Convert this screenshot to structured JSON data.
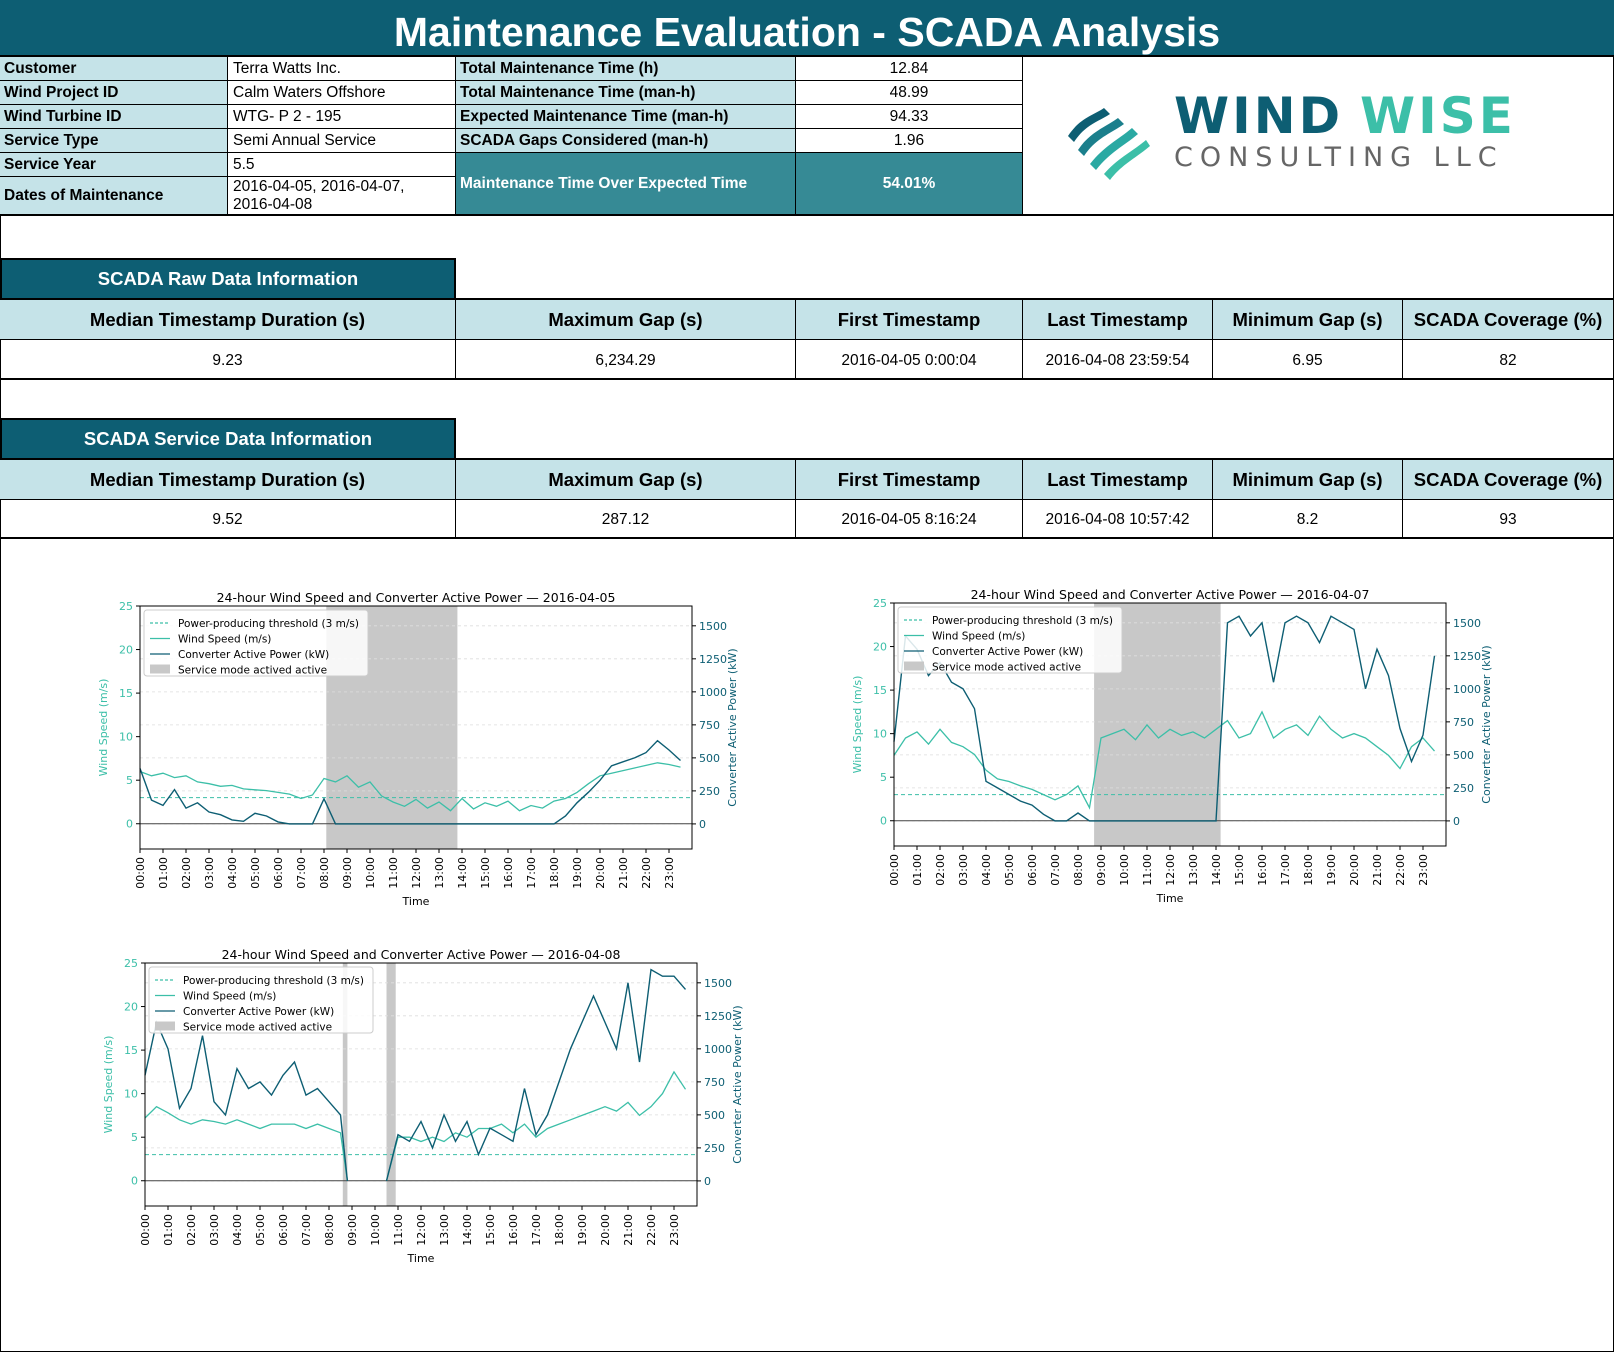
{
  "report": {
    "title": "Maintenance Evaluation - SCADA Analysis"
  },
  "colors": {
    "header_bg": "#0d5e73",
    "light_header": "#c5e3e8",
    "highlight": "#368a95",
    "wind": "#3cbfa8",
    "power": "#0d5e73",
    "service": "#c8c8c8"
  },
  "info": {
    "customer_label": "Customer",
    "customer": "Terra Watts Inc.",
    "project_label": "Wind Project ID",
    "project": "Calm Waters Offshore",
    "turbine_label": "Wind Turbine ID",
    "turbine": "WTG- P 2 - 195",
    "service_type_label": "Service Type",
    "service_type": "Semi Annual Service",
    "service_year_label": "Service Year",
    "service_year": "5.5",
    "dates_label": "Dates of Maintenance",
    "dates": "2016-04-05, 2016-04-07,",
    "dates_2": "2016-04-08"
  },
  "metrics": {
    "total_h_label": "Total Maintenance Time (h)",
    "total_h": "12.84",
    "total_manh_label": "Total Maintenance Time (man-h)",
    "total_manh": "48.99",
    "expected_label": "Expected Maintenance Time (man-h)",
    "expected": "94.33",
    "gaps_label": "SCADA Gaps Considered (man-h)",
    "gaps": "1.96",
    "over_label": "Maintenance Time Over Expected Time",
    "over": "54.01%"
  },
  "logo": {
    "word1": "WIND",
    "word2": "WISE",
    "sub": "CONSULTING LLC"
  },
  "raw": {
    "heading": "SCADA Raw Data Information",
    "headers": [
      "Median Timestamp Duration (s)",
      "Maximum Gap (s)",
      "First Timestamp",
      "Last Timestamp",
      "Minimum Gap (s)",
      "SCADA Coverage (%)"
    ],
    "values": [
      "9.23",
      "6,234.29",
      "2016-04-05 0:00:04",
      "2016-04-08 23:59:54",
      "6.95",
      "82"
    ]
  },
  "service": {
    "heading": "SCADA Service Data Information",
    "headers": [
      "Median Timestamp Duration (s)",
      "Maximum Gap (s)",
      "First Timestamp",
      "Last Timestamp",
      "Minimum Gap (s)",
      "SCADA Coverage (%)"
    ],
    "values": [
      "9.52",
      "287.12",
      "2016-04-05 8:16:24",
      "2016-04-08 10:57:42",
      "8.2",
      "93"
    ]
  },
  "chart_data": [
    {
      "type": "line",
      "title": "24-hour Wind Speed and Converter Active Power — 2016-04-05",
      "xlabel": "Time",
      "ylabel": "Wind Speed (m/s)",
      "y2label": "Converter Active Power (kW)",
      "ylim": [
        -2.9,
        25
      ],
      "y2lim": [
        -190,
        1650
      ],
      "yticks": [
        0,
        5,
        10,
        15,
        20,
        25
      ],
      "y2ticks": [
        0,
        250,
        500,
        750,
        1000,
        1250,
        1500
      ],
      "xticks": [
        "00:00",
        "01:00",
        "02:00",
        "03:00",
        "04:00",
        "05:00",
        "06:00",
        "07:00",
        "08:00",
        "09:00",
        "10:00",
        "11:00",
        "12:00",
        "13:00",
        "14:00",
        "15:00",
        "16:00",
        "17:00",
        "18:00",
        "19:00",
        "20:00",
        "21:00",
        "22:00",
        "23:00"
      ],
      "threshold": 3,
      "legend": [
        "Power-producing threshold (3 m/s)",
        "Wind Speed (m/s)",
        "Converter Active Power (kW)",
        "Service mode actived active"
      ],
      "legend_loc": "upper-left",
      "service_windows": [
        [
          8.1,
          13.8
        ]
      ],
      "gaps": [],
      "hours": [
        0,
        0.5,
        1,
        1.5,
        2,
        2.5,
        3,
        3.5,
        4,
        4.5,
        5,
        5.5,
        6,
        6.5,
        7,
        7.5,
        8,
        8.5,
        9,
        9.5,
        10,
        10.5,
        11,
        11.5,
        12,
        12.5,
        13,
        13.5,
        14,
        14.5,
        15,
        15.5,
        16,
        16.5,
        17,
        17.5,
        18,
        18.5,
        19,
        19.5,
        20,
        20.5,
        21,
        21.5,
        22,
        22.5,
        23,
        23.5
      ],
      "wind": [
        6.0,
        5.5,
        5.8,
        5.3,
        5.5,
        4.8,
        4.6,
        4.3,
        4.4,
        4.0,
        3.9,
        3.8,
        3.6,
        3.4,
        2.9,
        3.3,
        5.2,
        4.8,
        5.5,
        4.2,
        4.8,
        3.2,
        2.5,
        2.0,
        2.8,
        1.8,
        2.5,
        1.5,
        2.9,
        1.7,
        2.4,
        2.0,
        2.6,
        1.5,
        2.1,
        1.8,
        2.6,
        2.9,
        3.6,
        4.6,
        5.5,
        5.8,
        6.1,
        6.4,
        6.7,
        7.0,
        6.8,
        6.5
      ],
      "power": [
        420,
        180,
        140,
        260,
        120,
        160,
        90,
        70,
        30,
        20,
        80,
        60,
        15,
        0,
        0,
        0,
        190,
        0,
        0,
        0,
        0,
        0,
        0,
        0,
        0,
        0,
        0,
        0,
        0,
        0,
        0,
        0,
        0,
        0,
        0,
        0,
        0,
        60,
        160,
        240,
        330,
        440,
        470,
        500,
        540,
        630,
        560,
        480
      ]
    },
    {
      "type": "line",
      "title": "24-hour Wind Speed and Converter Active Power — 2016-04-07",
      "xlabel": "Time",
      "ylabel": "Wind Speed (m/s)",
      "y2label": "Converter Active Power (kW)",
      "ylim": [
        -2.9,
        25
      ],
      "y2lim": [
        -190,
        1650
      ],
      "yticks": [
        0,
        5,
        10,
        15,
        20,
        25
      ],
      "y2ticks": [
        0,
        250,
        500,
        750,
        1000,
        1250,
        1500
      ],
      "xticks": [
        "00:00",
        "01:00",
        "02:00",
        "03:00",
        "04:00",
        "05:00",
        "06:00",
        "07:00",
        "08:00",
        "09:00",
        "10:00",
        "11:00",
        "12:00",
        "13:00",
        "14:00",
        "15:00",
        "16:00",
        "17:00",
        "18:00",
        "19:00",
        "20:00",
        "21:00",
        "22:00",
        "23:00"
      ],
      "threshold": 3,
      "legend": [
        "Power-producing threshold (3 m/s)",
        "Wind Speed (m/s)",
        "Converter Active Power (kW)",
        "Service mode actived active"
      ],
      "legend_loc": "upper-left",
      "service_windows": [
        [
          8.7,
          14.2
        ]
      ],
      "gaps": [],
      "hours": [
        0,
        0.5,
        1,
        1.5,
        2,
        2.5,
        3,
        3.5,
        4,
        4.5,
        5,
        5.5,
        6,
        6.5,
        7,
        7.5,
        8,
        8.5,
        9,
        9.5,
        10,
        10.5,
        11,
        11.5,
        12,
        12.5,
        13,
        13.5,
        14,
        14.5,
        15,
        15.5,
        16,
        16.5,
        17,
        17.5,
        18,
        18.5,
        19,
        19.5,
        20,
        20.5,
        21,
        21.5,
        22,
        22.5,
        23,
        23.5
      ],
      "wind": [
        7.5,
        9.5,
        10.2,
        8.8,
        10.5,
        9.0,
        8.5,
        7.6,
        5.8,
        4.8,
        4.5,
        4.0,
        3.6,
        3.0,
        2.4,
        3.0,
        4.0,
        1.5,
        9.5,
        10.0,
        10.5,
        9.3,
        11.0,
        9.5,
        10.5,
        9.8,
        10.2,
        9.5,
        10.5,
        11.5,
        9.5,
        10.0,
        12.5,
        9.5,
        10.5,
        11.0,
        9.8,
        12.0,
        10.5,
        9.5,
        10.0,
        9.5,
        8.5,
        7.5,
        6.0,
        8.5,
        9.5,
        8.0
      ],
      "power": [
        600,
        1400,
        1300,
        1100,
        1200,
        1050,
        1000,
        850,
        300,
        250,
        200,
        150,
        120,
        50,
        0,
        0,
        60,
        0,
        0,
        0,
        0,
        0,
        0,
        0,
        0,
        0,
        0,
        0,
        0,
        1500,
        1550,
        1400,
        1500,
        1050,
        1500,
        1550,
        1500,
        1350,
        1550,
        1500,
        1450,
        1000,
        1300,
        1100,
        700,
        450,
        650,
        1250
      ]
    },
    {
      "type": "line",
      "title": "24-hour Wind Speed and Converter Active Power — 2016-04-08",
      "xlabel": "Time",
      "ylabel": "Wind Speed (m/s)",
      "y2label": "Converter Active Power (kW)",
      "ylim": [
        -2.9,
        25
      ],
      "y2lim": [
        -190,
        1650
      ],
      "yticks": [
        0,
        5,
        10,
        15,
        20,
        25
      ],
      "y2ticks": [
        0,
        250,
        500,
        750,
        1000,
        1250,
        1500
      ],
      "xticks": [
        "00:00",
        "01:00",
        "02:00",
        "03:00",
        "04:00",
        "05:00",
        "06:00",
        "07:00",
        "08:00",
        "09:00",
        "10:00",
        "11:00",
        "12:00",
        "13:00",
        "14:00",
        "15:00",
        "16:00",
        "17:00",
        "18:00",
        "19:00",
        "20:00",
        "21:00",
        "22:00",
        "23:00"
      ],
      "threshold": 3,
      "legend": [
        "Power-producing threshold (3 m/s)",
        "Wind Speed (m/s)",
        "Converter Active Power (kW)",
        "Service mode actived active"
      ],
      "legend_loc": "upper-left",
      "service_windows": [
        [
          8.6,
          8.8
        ],
        [
          10.5,
          10.9
        ]
      ],
      "gaps": [
        [
          8.8,
          10.5
        ]
      ],
      "hours": [
        0,
        0.5,
        1,
        1.5,
        2,
        2.5,
        3,
        3.5,
        4,
        4.5,
        5,
        5.5,
        6,
        6.5,
        7,
        7.5,
        8,
        8.5,
        8.8,
        10.5,
        11,
        11.5,
        12,
        12.5,
        13,
        13.5,
        14,
        14.5,
        15,
        15.5,
        16,
        16.5,
        17,
        17.5,
        18,
        18.5,
        19,
        19.5,
        20,
        20.5,
        21,
        21.5,
        22,
        22.5,
        23,
        23.5
      ],
      "wind": [
        7.2,
        8.5,
        7.8,
        7.0,
        6.5,
        7.0,
        6.8,
        6.5,
        7.0,
        6.5,
        6.0,
        6.5,
        6.5,
        6.5,
        6.0,
        6.5,
        6.0,
        5.5,
        0,
        0,
        5.0,
        5.0,
        4.5,
        5.0,
        4.5,
        5.5,
        5.0,
        6.0,
        6.0,
        6.5,
        5.5,
        6.5,
        5.0,
        6.0,
        6.5,
        7.0,
        7.5,
        8.0,
        8.5,
        8.0,
        9.0,
        7.5,
        8.5,
        10.0,
        12.5,
        10.5
      ],
      "power": [
        800,
        1200,
        1000,
        550,
        700,
        1100,
        600,
        500,
        850,
        700,
        750,
        650,
        800,
        900,
        650,
        700,
        600,
        500,
        0,
        0,
        350,
        300,
        450,
        250,
        500,
        300,
        450,
        200,
        400,
        350,
        300,
        700,
        350,
        500,
        750,
        1000,
        1200,
        1400,
        1200,
        1000,
        1500,
        900,
        1600,
        1550,
        1550,
        1450
      ]
    }
  ]
}
